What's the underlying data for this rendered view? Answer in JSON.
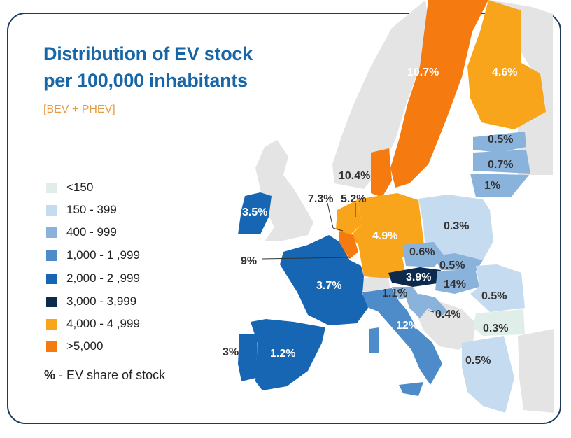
{
  "title_line1": "Distribution of EV stock",
  "title_line2": "per 100,000 inhabitants",
  "subtitle": "[BEV + PHEV]",
  "legend": [
    {
      "label": "<150",
      "color": "#dfeee8"
    },
    {
      "label": "150 -  399",
      "color": "#c5dbef"
    },
    {
      "label": "400 - 999",
      "color": "#8ab3dc"
    },
    {
      "label": "1,000 - 1 ,999",
      "color": "#4d8cc9"
    },
    {
      "label": "2,000 - 2 ,999",
      "color": "#1766b3"
    },
    {
      "label": "3,000 -   3,999",
      "color": "#0c2a4d"
    },
    {
      "label": "4,000 - 4 ,999",
      "color": "#f9a51b"
    },
    {
      "label": ">5,000",
      "color": "#f57a0f"
    }
  ],
  "note_symbol": "%",
  "note_text": " - EV share of stock",
  "no_data_color": "#e4e4e4",
  "map_labels": {
    "sweden": "10.7%",
    "finland": "4.6%",
    "estonia": "0.5%",
    "latvia": "0.7%",
    "lithuania": "1%",
    "denmark": "10.4%",
    "netherlands": "7.3%",
    "germany_north": "5.2%",
    "ireland": "3.5%",
    "germany": "4.9%",
    "poland": "0.3%",
    "czechia": "0.6%",
    "slovakia": "0.5%",
    "austria": "3.9%",
    "hungary": "14%",
    "belgium": "9%",
    "france": "3.7%",
    "slovenia": "1.1%",
    "romania": "0.5%",
    "croatia": "0.4%",
    "italy": "12%",
    "bulgaria": "0.3%",
    "portugal": "3%",
    "spain": "1.2%",
    "greece": "0.5%"
  }
}
